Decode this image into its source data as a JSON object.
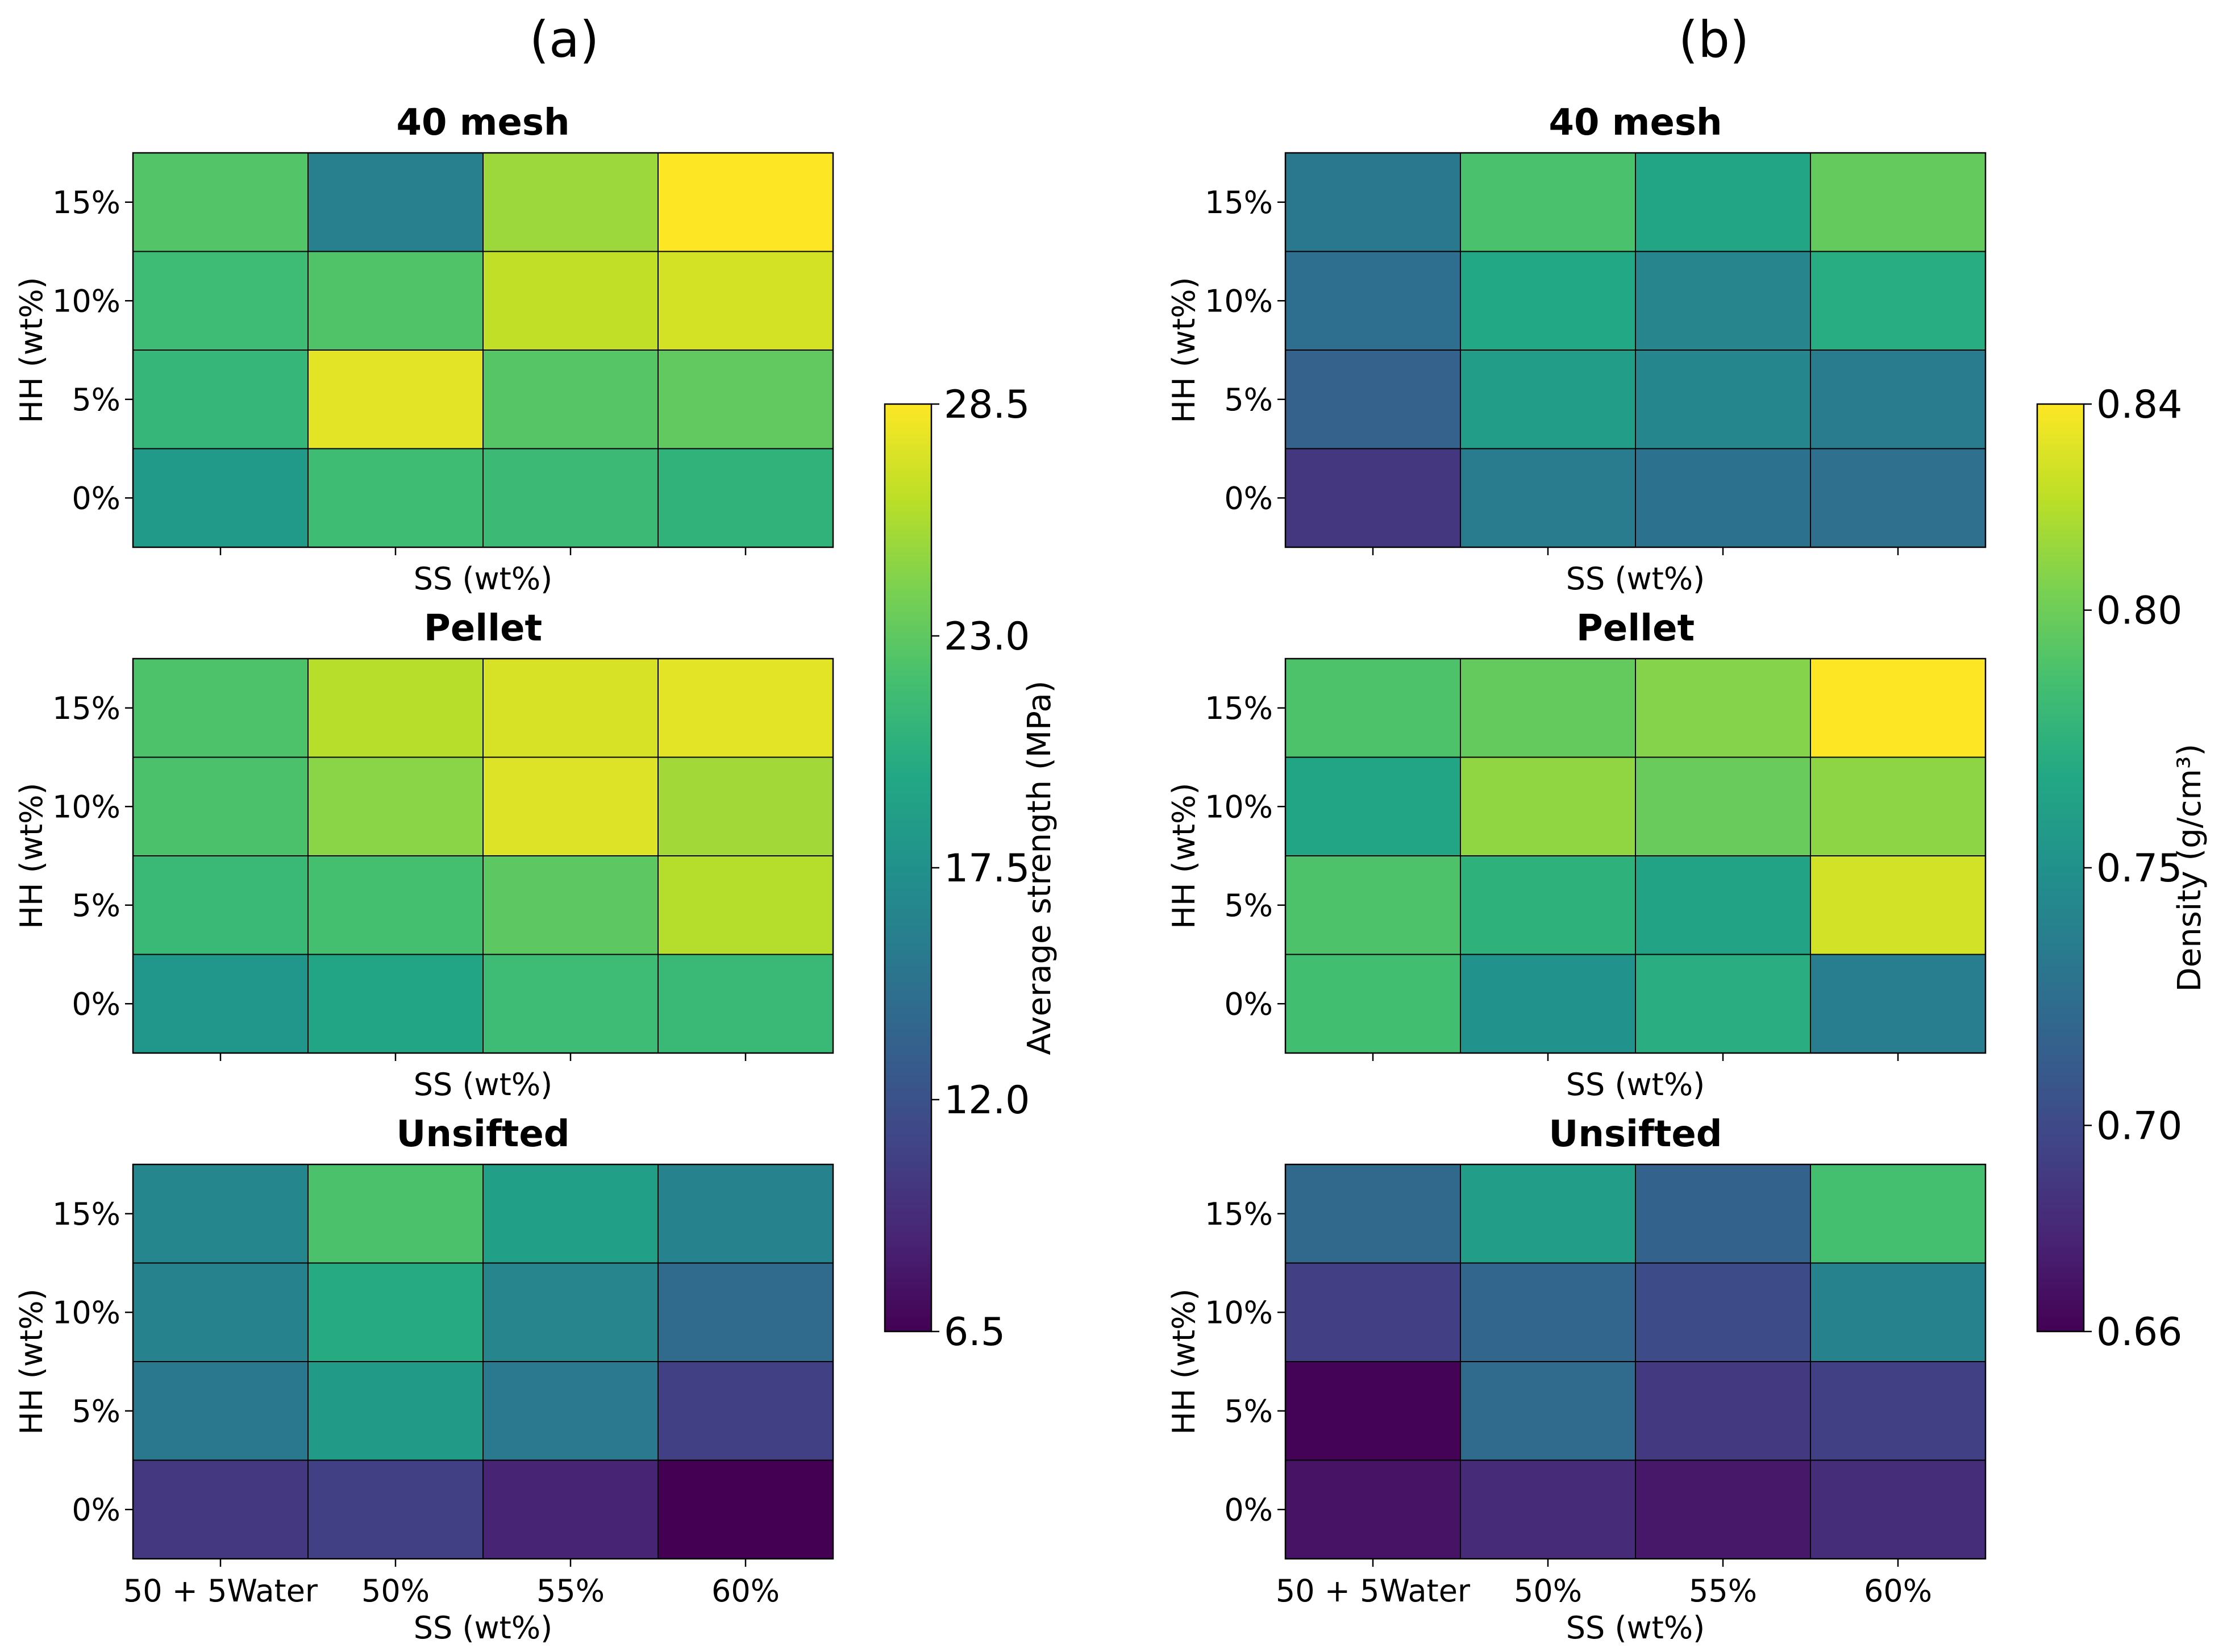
{
  "panel_labels": [
    "(a)",
    "(b)"
  ],
  "chart_data": [
    {
      "type": "heatmap",
      "panel": "(a)",
      "metric": "Average strength (MPa)",
      "colorbar": {
        "label": "Average strength (MPa)",
        "min": 6.5,
        "max": 28.5,
        "ticks": [
          6.5,
          12.0,
          17.5,
          23.0,
          28.5
        ],
        "tick_labels": [
          "6.5",
          "12.0",
          "17.5",
          "23.0",
          "28.5"
        ],
        "colormap": "viridis"
      },
      "xlabel": "SS (wt%)",
      "ylabel": "HH (wt%)",
      "x_categories": [
        "50 + 5Water",
        "50%",
        "55%",
        "60%"
      ],
      "y_categories": [
        "15%",
        "10%",
        "5%",
        "0%"
      ],
      "subplots": [
        {
          "title": "40 mesh",
          "values": [
            [
              22.5,
              15.9,
              25.2,
              28.5
            ],
            [
              21.5,
              22.4,
              26.4,
              27.1
            ],
            [
              21.0,
              27.6,
              22.6,
              23.1
            ],
            [
              18.4,
              21.6,
              21.4,
              20.7
            ]
          ]
        },
        {
          "title": "Pellet",
          "values": [
            [
              22.3,
              26.1,
              27.2,
              27.6
            ],
            [
              22.2,
              24.6,
              27.4,
              25.4
            ],
            [
              21.2,
              21.9,
              22.9,
              26.0
            ],
            [
              18.0,
              19.4,
              21.5,
              21.2
            ]
          ]
        },
        {
          "title": "Unsifted",
          "values": [
            [
              16.5,
              22.2,
              18.8,
              16.2
            ],
            [
              16.2,
              19.9,
              16.4,
              14.1
            ],
            [
              15.3,
              18.5,
              15.4,
              10.6
            ],
            [
              10.1,
              10.6,
              8.7,
              6.5
            ]
          ]
        }
      ]
    },
    {
      "type": "heatmap",
      "panel": "(b)",
      "metric": "Density (g/cm³)",
      "colorbar": {
        "label": "Density (g/cm³)",
        "min": 0.66,
        "max": 0.84,
        "ticks": [
          0.66,
          0.7,
          0.75,
          0.8,
          0.84
        ],
        "tick_labels": [
          "0.66",
          "0.70",
          "0.75",
          "0.80",
          "0.84"
        ],
        "colormap": "viridis"
      },
      "xlabel": "SS (wt%)",
      "ylabel": "HH (wt%)",
      "x_categories": [
        "50 + 5Water",
        "50%",
        "55%",
        "60%"
      ],
      "y_categories": [
        "15%",
        "10%",
        "5%",
        "0%"
      ],
      "subplots": [
        {
          "title": "40 mesh",
          "values": [
            [
              0.732,
              0.788,
              0.766,
              0.797
            ],
            [
              0.725,
              0.768,
              0.741,
              0.771
            ],
            [
              0.716,
              0.759,
              0.743,
              0.735
            ],
            [
              0.688,
              0.734,
              0.728,
              0.726
            ]
          ]
        },
        {
          "title": "Pellet",
          "values": [
            [
              0.789,
              0.797,
              0.807,
              0.84
            ],
            [
              0.766,
              0.81,
              0.798,
              0.809
            ],
            [
              0.789,
              0.775,
              0.764,
              0.828
            ],
            [
              0.785,
              0.751,
              0.772,
              0.736
            ]
          ]
        },
        {
          "title": "Unsifted",
          "values": [
            [
              0.721,
              0.759,
              0.717,
              0.786
            ],
            [
              0.693,
              0.719,
              0.701,
              0.74
            ],
            [
              0.661,
              0.723,
              0.69,
              0.694
            ],
            [
              0.669,
              0.682,
              0.672,
              0.683
            ]
          ]
        }
      ]
    }
  ]
}
